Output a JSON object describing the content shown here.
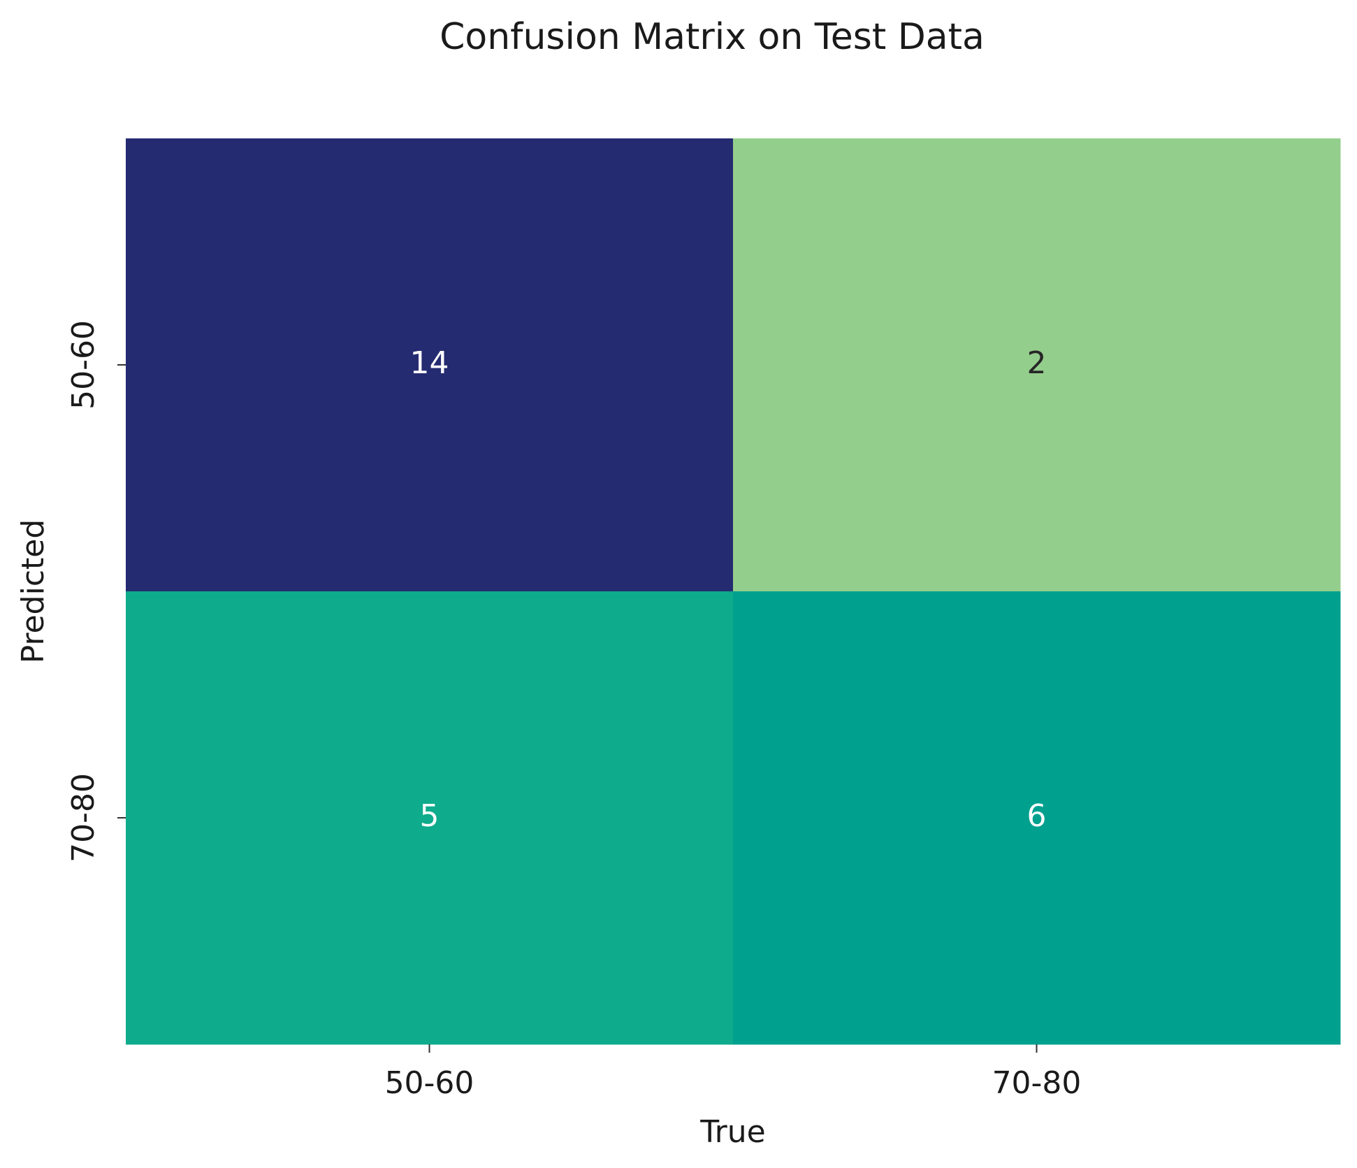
{
  "chart_data": {
    "type": "heatmap",
    "title": "Confusion Matrix on Test Data",
    "x_label": "True",
    "y_label": "Predicted",
    "x_categories": [
      "50-60",
      "70-80"
    ],
    "y_categories": [
      "50-60",
      "70-80"
    ],
    "values": [
      [
        14,
        2
      ],
      [
        5,
        6
      ]
    ],
    "colors": [
      [
        "#252b70",
        "#94ce8c"
      ],
      [
        "#0eab8c",
        "#00a08f"
      ]
    ]
  }
}
